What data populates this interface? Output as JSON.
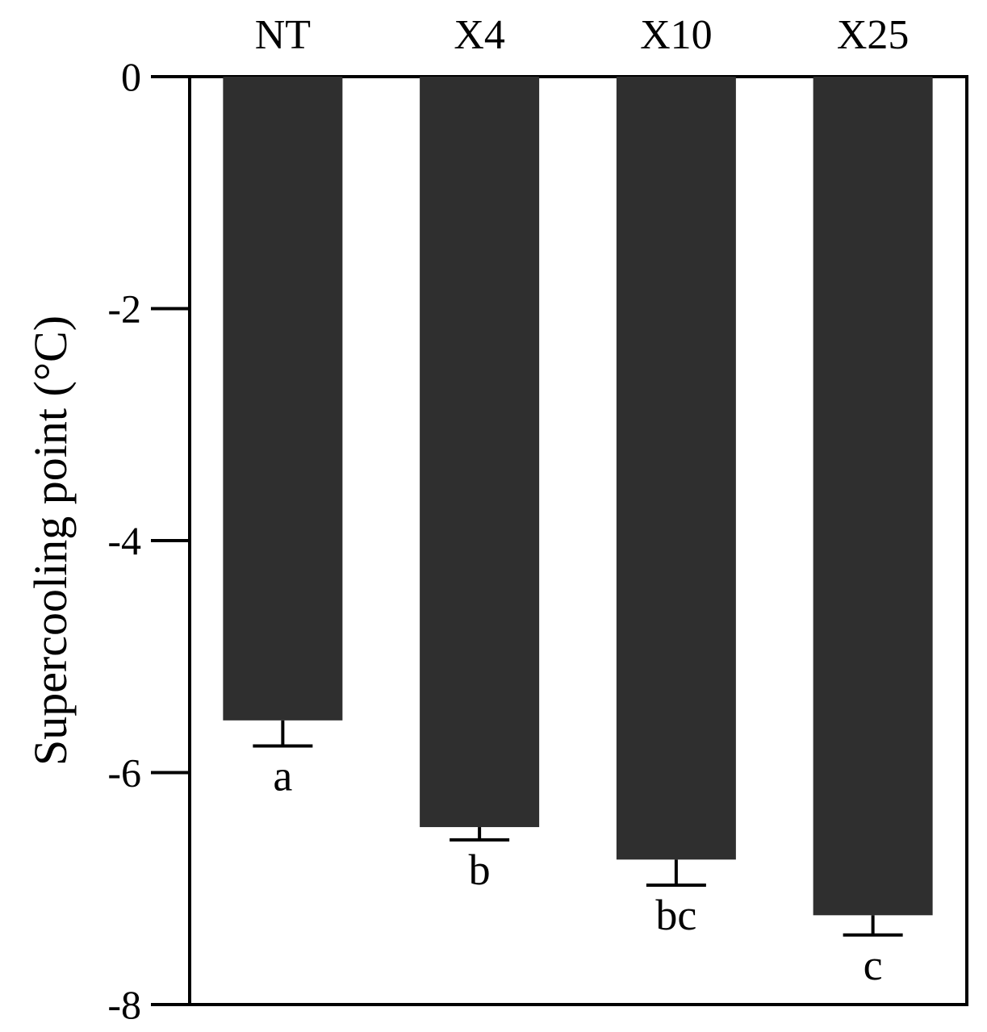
{
  "chart_data": {
    "type": "bar",
    "categories": [
      "NT",
      "X4",
      "X10",
      "X25"
    ],
    "values": [
      -5.55,
      -6.47,
      -6.75,
      -7.23
    ],
    "errors": [
      0.22,
      0.11,
      0.22,
      0.17
    ],
    "significance": [
      "a",
      "b",
      "bc",
      "c"
    ],
    "ylabel": "Supercooling point (°C)",
    "ylim": [
      -8,
      0
    ],
    "yticks": [
      0,
      -2,
      -4,
      -6,
      -8
    ],
    "ytick_labels": [
      "0",
      "-2",
      "-4",
      "-6",
      "-8"
    ],
    "bar_color": "#2f2f2f",
    "category_labels_position": "top",
    "grid": false,
    "legend": "none"
  }
}
